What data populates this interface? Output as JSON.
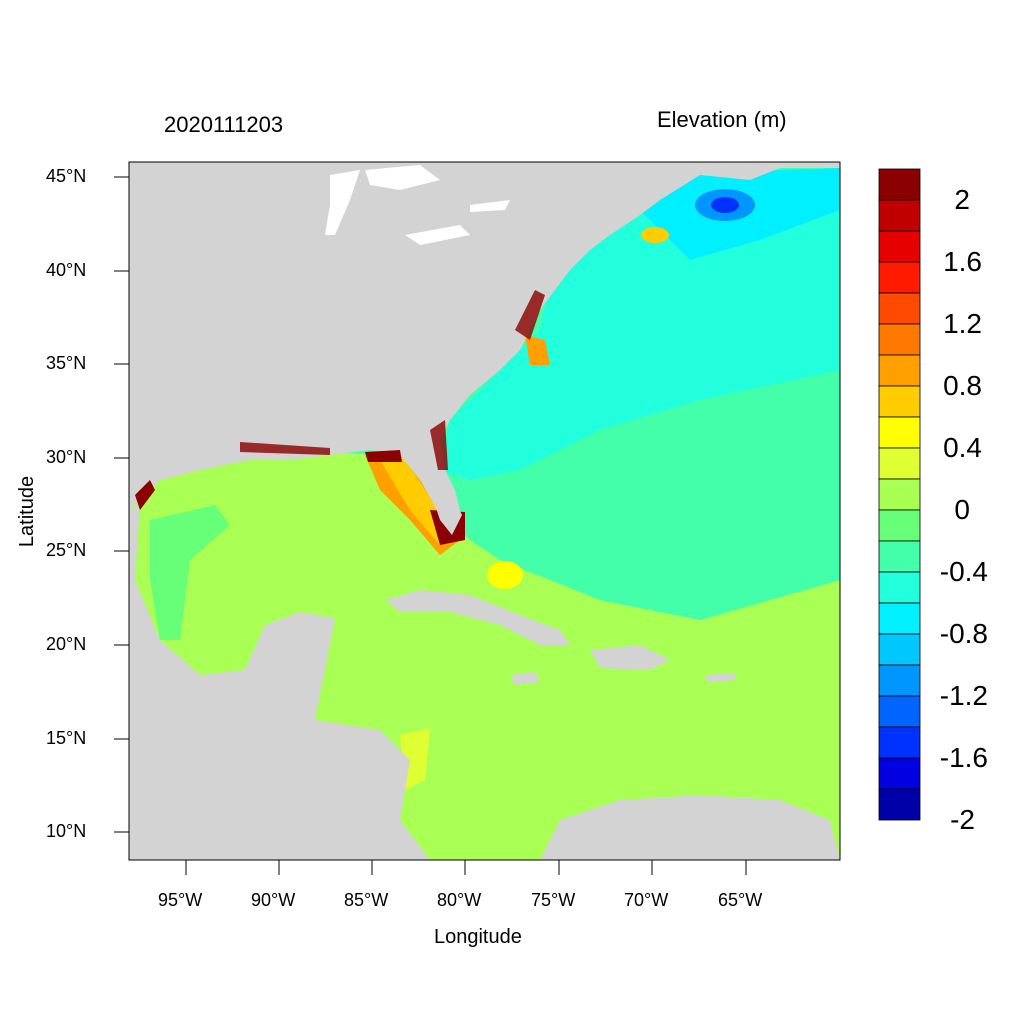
{
  "map": {
    "timestamp": "2020111203",
    "variable_title": "Elevation (m)",
    "x_axis_title": "Longitude",
    "y_axis_title": "Latitude",
    "lat_ticks": [
      "45°N",
      "40°N",
      "35°N",
      "30°N",
      "25°N",
      "20°N",
      "15°N",
      "10°N"
    ],
    "lon_ticks": [
      "95°W",
      "90°W",
      "85°W",
      "80°W",
      "75°W",
      "70°W",
      "65°W"
    ],
    "colors": {
      "land": "#d3d3d3",
      "background": "#ffffff"
    }
  },
  "colorbar": {
    "labels": [
      "2",
      "1.6",
      "1.2",
      "0.8",
      "0.4",
      "0",
      "-0.4",
      "-0.8",
      "-1.2",
      "-1.6",
      "-2"
    ],
    "colors": [
      "#8b0000",
      "#c00000",
      "#e60000",
      "#ff1a00",
      "#ff4a00",
      "#ff7800",
      "#ffa000",
      "#ffcc00",
      "#ffff00",
      "#e0ff33",
      "#aaff55",
      "#66ff77",
      "#44ffaa",
      "#22ffdd",
      "#00f0ff",
      "#00c8ff",
      "#0096ff",
      "#0064ff",
      "#0032ff",
      "#0000e0",
      "#0000a8"
    ]
  }
}
